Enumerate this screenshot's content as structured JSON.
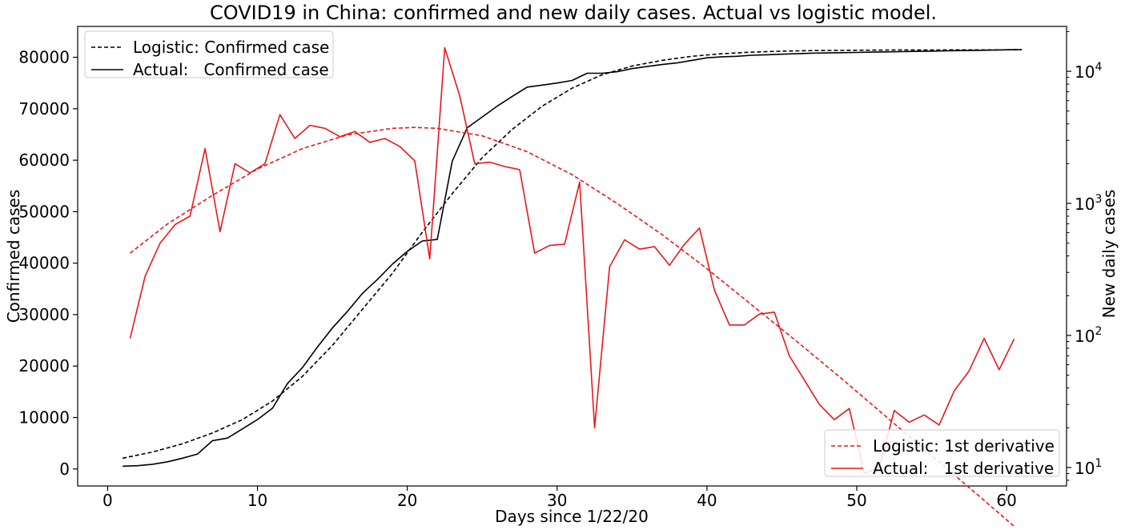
{
  "chart_data": {
    "type": "line",
    "title": "COVID19 in China: confirmed and new daily cases. Actual vs logistic model.",
    "xlabel": "Days since 1/22/20",
    "ylabel": "Confirmed cases",
    "y2label": "New daily cases",
    "xlim": [
      -2,
      64
    ],
    "ylim": [
      -3300,
      86000
    ],
    "y2lim_log10": [
      0.86,
      4.34
    ],
    "y2_scale": "log",
    "grid": false,
    "xticks": [
      0,
      10,
      20,
      30,
      40,
      50,
      60
    ],
    "xtick_labels": [
      "0",
      "10",
      "20",
      "30",
      "40",
      "50",
      "60"
    ],
    "yticks": [
      0,
      10000,
      20000,
      30000,
      40000,
      50000,
      60000,
      70000,
      80000
    ],
    "ytick_labels": [
      "0",
      "10000",
      "20000",
      "30000",
      "40000",
      "50000",
      "60000",
      "70000",
      "80000"
    ],
    "y2ticks": [
      10,
      100,
      1000,
      10000
    ],
    "y2tick_bases": [
      "10",
      "10",
      "10",
      "10"
    ],
    "y2tick_exponents": [
      "1",
      "2",
      "3",
      "4"
    ],
    "legend_left_placement": "upper left",
    "legend_right_placement": "lower right",
    "legend_left": [
      {
        "label": "Logistic: Confirmed case",
        "color": "#000000",
        "dashed": true
      },
      {
        "label": "Actual:   Confirmed case",
        "color": "#000000",
        "dashed": false
      }
    ],
    "legend_right": [
      {
        "label": "Logistic: 1st derivative",
        "color": "#e8171a",
        "dashed": true
      },
      {
        "label": "Actual:   1st derivative",
        "color": "#e8171a",
        "dashed": false
      }
    ],
    "series": [
      {
        "name": "Logistic: Confirmed case",
        "axis": "left",
        "color": "#000000",
        "dashed": true,
        "x": [
          1,
          3,
          5,
          7,
          9,
          11,
          13,
          15,
          17,
          19,
          21,
          23,
          25,
          27,
          29,
          31,
          33,
          35,
          37,
          39,
          41,
          43,
          45,
          47,
          49,
          51,
          53,
          55,
          57,
          59,
          61
        ],
        "y": [
          2100,
          3300,
          4900,
          7000,
          9600,
          13200,
          18000,
          24000,
          31000,
          38000,
          46000,
          53500,
          60500,
          66000,
          70500,
          74000,
          76600,
          78300,
          79400,
          80200,
          80700,
          81000,
          81200,
          81300,
          81350,
          81400,
          81420,
          81430,
          81440,
          81445,
          81450
        ]
      },
      {
        "name": "Actual:   Confirmed case",
        "axis": "left",
        "color": "#000000",
        "dashed": false,
        "x": [
          1,
          2,
          3,
          4,
          5,
          6,
          7,
          8,
          9,
          10,
          11,
          12,
          13,
          14,
          15,
          16,
          17,
          18,
          19,
          20,
          21,
          22,
          23,
          24,
          25,
          26,
          27,
          28,
          29,
          30,
          31,
          32,
          33,
          34,
          35,
          36,
          37,
          38,
          39,
          40,
          41,
          42,
          43,
          44,
          45,
          46,
          47,
          48,
          49,
          50,
          51,
          52,
          53,
          54,
          55,
          56,
          57,
          58,
          59,
          60,
          61
        ],
        "y": [
          550,
          640,
          920,
          1400,
          2100,
          2900,
          5500,
          6000,
          7800,
          9600,
          11800,
          16600,
          19700,
          23700,
          27400,
          30600,
          34100,
          36800,
          39800,
          42300,
          44300,
          44600,
          59800,
          66300,
          68400,
          70500,
          72400,
          74200,
          74600,
          75000,
          75500,
          76900,
          76900,
          77200,
          77800,
          78200,
          78600,
          78900,
          79400,
          79900,
          80100,
          80200,
          80400,
          80500,
          80600,
          80700,
          80800,
          80850,
          80900,
          80950,
          81000,
          81050,
          81100,
          81150,
          81200,
          81250,
          81300,
          81350,
          81400,
          81450,
          81500
        ]
      },
      {
        "name": "Logistic: 1st derivative",
        "axis": "right",
        "color": "#e8171a",
        "dashed": true,
        "x": [
          1.5,
          4,
          7,
          10,
          13,
          16,
          19,
          20.5,
          22,
          25,
          28,
          31,
          34,
          37,
          40,
          43,
          46,
          49,
          52,
          55,
          58,
          61
        ],
        "y": [
          420,
          700,
          1150,
          1820,
          2600,
          3300,
          3700,
          3760,
          3700,
          3250,
          2460,
          1650,
          1000,
          580,
          320,
          170,
          90,
          47,
          24,
          12.3,
          6.3,
          3.2
        ]
      },
      {
        "name": "Actual:   1st derivative",
        "axis": "right",
        "color": "#e8171a",
        "dashed": false,
        "x": [
          1.5,
          2.5,
          3.5,
          4.5,
          5.5,
          6.5,
          7.5,
          8.5,
          9.5,
          10.5,
          11.5,
          12.5,
          13.5,
          14.5,
          15.5,
          16.5,
          17.5,
          18.5,
          19.5,
          20.5,
          21.5,
          22.5,
          23.5,
          24.5,
          25.5,
          26.5,
          27.5,
          28.5,
          29.5,
          30.5,
          31.5,
          32.5,
          33.5,
          34.5,
          35.5,
          36.5,
          37.5,
          38.5,
          39.5,
          40.5,
          41.5,
          42.5,
          43.5,
          44.5,
          45.5,
          46.5,
          47.5,
          48.5,
          49.5,
          50.5,
          51.5,
          52.5,
          53.5,
          54.5,
          55.5,
          56.5,
          57.5,
          58.5,
          59.5,
          60.5
        ],
        "y": [
          95,
          280,
          500,
          690,
          800,
          2600,
          610,
          2000,
          1700,
          2000,
          4700,
          3100,
          3900,
          3700,
          3200,
          3500,
          2900,
          3100,
          2700,
          2100,
          380,
          15100,
          6500,
          2000,
          2050,
          1900,
          1800,
          420,
          480,
          490,
          1450,
          20,
          330,
          530,
          450,
          470,
          340,
          490,
          650,
          220,
          120,
          120,
          145,
          150,
          70,
          46,
          30,
          23,
          28,
          9,
          10,
          27,
          22,
          25,
          21,
          38,
          54,
          95,
          55,
          94
        ]
      }
    ]
  }
}
